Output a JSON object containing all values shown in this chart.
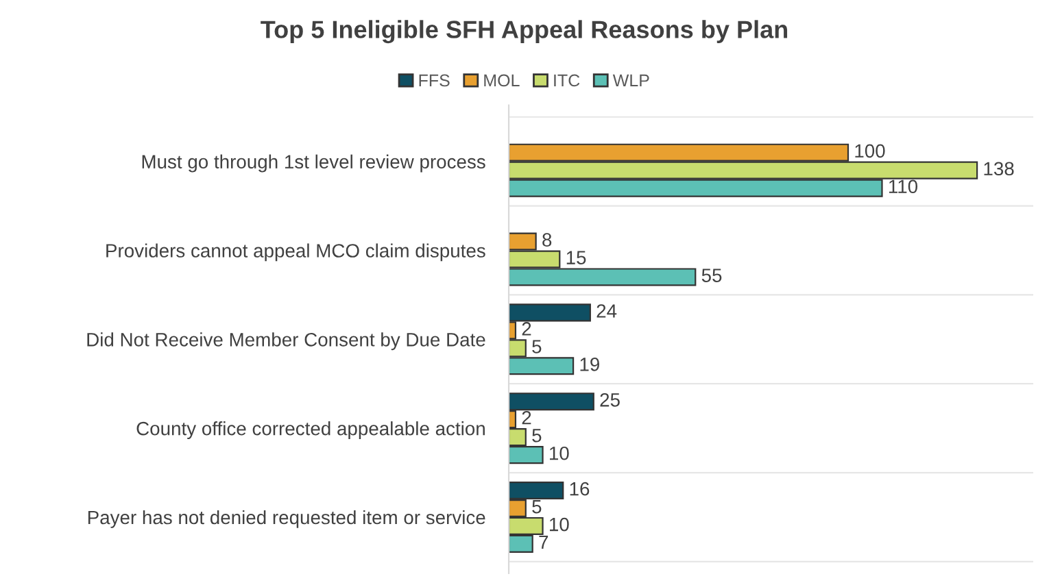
{
  "chart_data": {
    "type": "bar",
    "orientation": "horizontal",
    "title": "Top 5 Ineligible SFH Appeal Reasons by Plan",
    "categories": [
      "Must go through 1st level review process",
      "Providers cannot appeal MCO claim disputes",
      "Did Not Receive Member Consent by Due Date",
      "County office corrected appealable action",
      "Payer has not denied requested item or service"
    ],
    "series": [
      {
        "name": "FFS",
        "color": "#0f4f63",
        "values": [
          null,
          null,
          24,
          25,
          16
        ]
      },
      {
        "name": "MOL",
        "color": "#e8a030",
        "values": [
          100,
          8,
          2,
          2,
          5
        ]
      },
      {
        "name": "ITC",
        "color": "#c8dc6e",
        "values": [
          138,
          15,
          5,
          5,
          10
        ]
      },
      {
        "name": "WLP",
        "color": "#5cc0b5",
        "values": [
          110,
          55,
          19,
          10,
          7
        ]
      }
    ],
    "data_labels": true,
    "legend": "top",
    "grid": false
  }
}
